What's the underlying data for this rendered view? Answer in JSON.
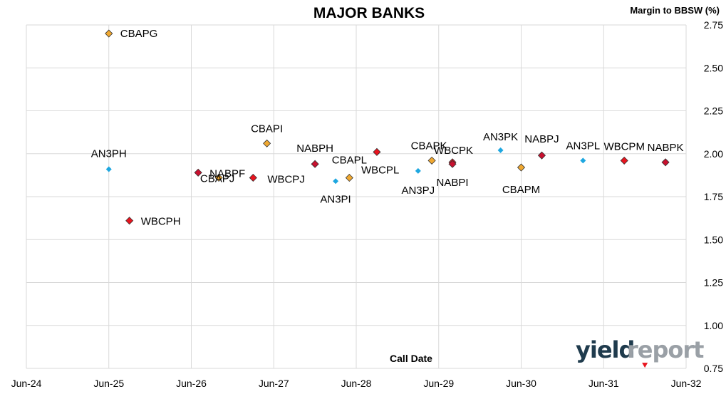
{
  "chart_data": {
    "type": "scatter",
    "title": "MAJOR BANKS",
    "ylabel": "Margin to BBSW (%)",
    "xlabel": "Call Date",
    "ylim": [
      0.75,
      2.75
    ],
    "yticks": [
      "0.75",
      "1.00",
      "1.25",
      "1.50",
      "1.75",
      "2.00",
      "2.25",
      "2.50",
      "2.75"
    ],
    "xticks": [
      "Jun-24",
      "Jun-25",
      "Jun-26",
      "Jun-27",
      "Jun-28",
      "Jun-29",
      "Jun-30",
      "Jun-31",
      "Jun-32"
    ],
    "grid": true,
    "colors": {
      "AN3": "#1ea7e0",
      "NAB": "#c8102e",
      "CBA": "#f0a830",
      "WBC": "#e8141e"
    },
    "points": [
      {
        "label": "CBAPG",
        "x": "Jun-25",
        "y": 2.7,
        "issuer": "CBA"
      },
      {
        "label": "AN3PH",
        "x": "Jun-25",
        "y": 1.91,
        "issuer": "AN3"
      },
      {
        "label": "WBCPH",
        "x": "Sep-25",
        "y": 1.61,
        "issuer": "WBC"
      },
      {
        "label": "NABPF",
        "x": "Jul-26",
        "y": 1.89,
        "issuer": "NAB"
      },
      {
        "label": "CBAPJ",
        "x": "Oct-26",
        "y": 1.86,
        "issuer": "CBA"
      },
      {
        "label": "WBCPJ",
        "x": "Mar-27",
        "y": 1.86,
        "issuer": "WBC"
      },
      {
        "label": "CBAPI",
        "x": "May-27",
        "y": 2.06,
        "issuer": "CBA"
      },
      {
        "label": "NABPH",
        "x": "Dec-27",
        "y": 1.94,
        "issuer": "NAB"
      },
      {
        "label": "AN3PI",
        "x": "Mar-28",
        "y": 1.84,
        "issuer": "AN3"
      },
      {
        "label": "CBAPL",
        "x": "May-28",
        "y": 1.86,
        "issuer": "CBA"
      },
      {
        "label": "WBCPL",
        "x": "Sep-28",
        "y": 2.01,
        "issuer": "WBC"
      },
      {
        "label": "AN3PJ",
        "x": "Mar-29",
        "y": 1.9,
        "issuer": "AN3"
      },
      {
        "label": "CBAPK",
        "x": "May-29",
        "y": 1.96,
        "issuer": "CBA"
      },
      {
        "label": "WBCPK",
        "x": "Aug-29",
        "y": 1.95,
        "issuer": "WBC"
      },
      {
        "label": "NABPI",
        "x": "Aug-29",
        "y": 1.94,
        "issuer": "NAB"
      },
      {
        "label": "AN3PK",
        "x": "Mar-30",
        "y": 2.02,
        "issuer": "AN3"
      },
      {
        "label": "CBAPM",
        "x": "Jun-30",
        "y": 1.92,
        "issuer": "CBA"
      },
      {
        "label": "NABPJ",
        "x": "Sep-30",
        "y": 1.99,
        "issuer": "NAB"
      },
      {
        "label": "AN3PL",
        "x": "Mar-31",
        "y": 1.96,
        "issuer": "AN3"
      },
      {
        "label": "WBCPM",
        "x": "Sep-31",
        "y": 1.96,
        "issuer": "WBC"
      },
      {
        "label": "NABPK",
        "x": "Mar-32",
        "y": 1.95,
        "issuer": "NAB"
      },
      {
        "label": "",
        "x": "Dec-31",
        "y": 0.77,
        "issuer": "WBC"
      }
    ]
  },
  "logo": {
    "part1": "yield",
    "part2": "report"
  }
}
